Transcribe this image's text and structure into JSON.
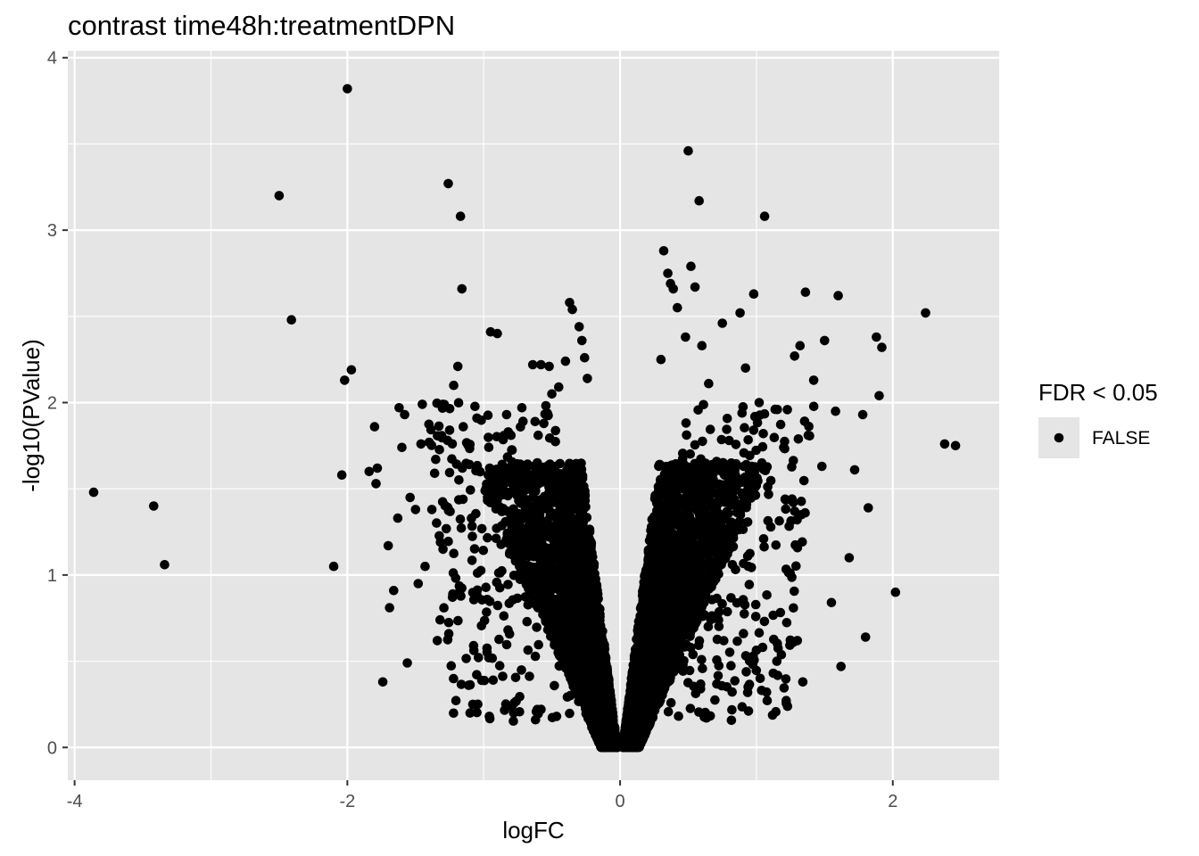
{
  "chart_data": {
    "type": "scatter",
    "title": "contrast time48h:treatmentDPN",
    "xlabel": "logFC",
    "ylabel": "-log10(PValue)",
    "xlim": [
      -4.05,
      2.78
    ],
    "ylim": [
      -0.19,
      4.04
    ],
    "x_ticks": [
      {
        "value": -4,
        "label": "-4"
      },
      {
        "value": -2,
        "label": "-2"
      },
      {
        "value": 0,
        "label": "0"
      },
      {
        "value": 2,
        "label": "2"
      }
    ],
    "y_ticks": [
      {
        "value": 0,
        "label": "0"
      },
      {
        "value": 1,
        "label": "1"
      },
      {
        "value": 2,
        "label": "2"
      },
      {
        "value": 3,
        "label": "3"
      },
      {
        "value": 4,
        "label": "4"
      }
    ],
    "grid": true,
    "background": "#e5e5e5",
    "grid_color": "#ffffff",
    "point_color": "#000000",
    "legend": {
      "title": "FDR < 0.05",
      "placement": "right",
      "entries": [
        {
          "label": "FALSE",
          "color": "#000000"
        }
      ]
    },
    "series": [
      {
        "values": [
          [
            -3.86,
            1.48
          ],
          [
            -3.42,
            1.4
          ],
          [
            -3.34,
            1.06
          ],
          [
            -2.5,
            3.2
          ],
          [
            -2.41,
            2.48
          ],
          [
            -2.1,
            1.05
          ],
          [
            -2.04,
            1.58
          ],
          [
            -2.02,
            2.13
          ],
          [
            -2.0,
            3.82
          ],
          [
            -1.97,
            2.19
          ],
          [
            -1.84,
            1.6
          ],
          [
            -1.8,
            1.86
          ],
          [
            -1.79,
            1.53
          ],
          [
            -1.78,
            1.62
          ],
          [
            -1.74,
            0.38
          ],
          [
            -1.7,
            1.17
          ],
          [
            -1.69,
            0.81
          ],
          [
            -1.66,
            0.91
          ],
          [
            -1.63,
            1.33
          ],
          [
            -1.62,
            1.97
          ],
          [
            -1.6,
            1.74
          ],
          [
            -1.58,
            1.93
          ],
          [
            -1.56,
            0.49
          ],
          [
            -1.54,
            1.45
          ],
          [
            -1.5,
            1.38
          ],
          [
            -1.48,
            0.95
          ],
          [
            -1.46,
            1.76
          ],
          [
            -1.45,
            1.99
          ],
          [
            -1.43,
            1.05
          ],
          [
            -1.4,
            1.77
          ],
          [
            -1.38,
            1.38
          ],
          [
            -1.36,
            1.59
          ],
          [
            -1.34,
            0.62
          ],
          [
            -1.32,
            0.74
          ],
          [
            -1.3,
            1.99
          ],
          [
            -1.26,
            3.27
          ],
          [
            -1.25,
            1.84
          ],
          [
            -1.22,
            2.1
          ],
          [
            -1.19,
            2.21
          ],
          [
            -1.17,
            3.08
          ],
          [
            -1.16,
            2.66
          ],
          [
            -1.15,
            1.86
          ],
          [
            -1.1,
            0.2
          ],
          [
            -1.08,
            0.25
          ],
          [
            -1.05,
            1.91
          ],
          [
            -0.95,
            2.41
          ],
          [
            -0.9,
            2.4
          ],
          [
            -0.82,
            1.83
          ],
          [
            -0.8,
            1.81
          ],
          [
            -0.78,
            0.2
          ],
          [
            -0.72,
            1.97
          ],
          [
            -0.64,
            2.22
          ],
          [
            -0.6,
            1.81
          ],
          [
            -0.58,
            2.22
          ],
          [
            -0.52,
            2.21
          ],
          [
            -0.5,
            2.05
          ],
          [
            -0.45,
            2.09
          ],
          [
            -0.4,
            2.24
          ],
          [
            -0.37,
            2.58
          ],
          [
            -0.35,
            2.54
          ],
          [
            -0.3,
            2.44
          ],
          [
            -0.28,
            2.36
          ],
          [
            -0.26,
            2.26
          ],
          [
            -0.24,
            2.14
          ],
          [
            0.3,
            2.25
          ],
          [
            0.32,
            2.88
          ],
          [
            0.35,
            2.75
          ],
          [
            0.37,
            2.69
          ],
          [
            0.39,
            2.66
          ],
          [
            0.42,
            2.55
          ],
          [
            0.48,
            2.38
          ],
          [
            0.5,
            3.46
          ],
          [
            0.52,
            2.79
          ],
          [
            0.55,
            2.67
          ],
          [
            0.58,
            3.17
          ],
          [
            0.6,
            2.33
          ],
          [
            0.65,
            2.11
          ],
          [
            0.75,
            2.46
          ],
          [
            0.8,
            1.78
          ],
          [
            0.88,
            2.52
          ],
          [
            0.92,
            2.2
          ],
          [
            0.98,
            2.63
          ],
          [
            1.02,
            2.0
          ],
          [
            1.05,
            1.82
          ],
          [
            1.06,
            3.08
          ],
          [
            1.15,
            0.5
          ],
          [
            1.2,
            1.74
          ],
          [
            1.28,
            2.27
          ],
          [
            1.3,
            0.62
          ],
          [
            1.32,
            2.33
          ],
          [
            1.34,
            0.38
          ],
          [
            1.36,
            2.64
          ],
          [
            1.38,
            1.81
          ],
          [
            1.42,
            2.13
          ],
          [
            1.48,
            1.63
          ],
          [
            1.5,
            2.36
          ],
          [
            1.55,
            0.84
          ],
          [
            1.58,
            1.95
          ],
          [
            1.6,
            2.62
          ],
          [
            1.62,
            0.47
          ],
          [
            1.68,
            1.1
          ],
          [
            1.72,
            1.61
          ],
          [
            1.78,
            1.93
          ],
          [
            1.8,
            0.64
          ],
          [
            1.82,
            1.39
          ],
          [
            1.88,
            2.38
          ],
          [
            1.9,
            2.04
          ],
          [
            1.92,
            2.32
          ],
          [
            2.02,
            0.9
          ],
          [
            2.24,
            2.52
          ],
          [
            2.38,
            1.76
          ],
          [
            2.46,
            1.75
          ]
        ]
      }
    ]
  }
}
